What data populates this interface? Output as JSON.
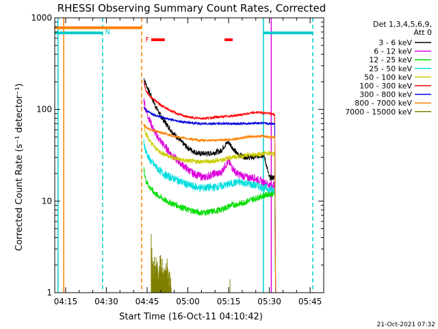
{
  "chart_data": {
    "type": "line",
    "title": "RHESSI Observing Summary Count Rates, Corrected",
    "xlabel": "Start Time (16-Oct-11 04:10:42)",
    "ylabel": "Corrected Count Rate (s⁻¹ detector⁻¹)",
    "y_scale": "log",
    "ylim": [
      1,
      1000
    ],
    "xlim_min": [
      251,
      350
    ],
    "x_tick_labels": [
      "04:15",
      "04:30",
      "04:45",
      "05:00",
      "05:15",
      "05:30",
      "05:45"
    ],
    "x_tick_min": [
      255,
      270,
      285,
      300,
      315,
      330,
      345
    ],
    "y_tick_labels": [
      "1",
      "10",
      "100",
      "1000"
    ],
    "y_tick_values": [
      1,
      10,
      100,
      1000
    ],
    "legend_header": [
      "Det 1,3,4,5,6,9,",
      "Att 0"
    ],
    "legend_position": "right",
    "series": [
      {
        "name": "3 - 6 keV",
        "color": "#000000",
        "x": [
          283.8,
          284.5,
          286,
          288,
          290,
          292,
          294,
          296,
          298,
          300,
          302,
          304,
          306,
          308,
          310,
          312,
          314,
          315,
          316,
          318,
          320,
          322,
          324,
          326,
          328,
          330,
          332
        ],
        "y": [
          220,
          190,
          150,
          110,
          85,
          70,
          58,
          50,
          43,
          38,
          35,
          33,
          33,
          33,
          34,
          35,
          42,
          44,
          40,
          33,
          31,
          30,
          30,
          31,
          32,
          18,
          18
        ]
      },
      {
        "name": "6 - 12 keV",
        "color": "#dd00dd",
        "x": [
          283.8,
          284.5,
          286,
          288,
          290,
          292,
          294,
          296,
          298,
          300,
          302,
          304,
          306,
          308,
          310,
          312,
          314,
          315,
          316,
          318,
          320,
          322,
          324,
          326,
          328,
          330,
          332
        ],
        "y": [
          130,
          100,
          75,
          55,
          45,
          38,
          32,
          28,
          25,
          22,
          20,
          19,
          18,
          19,
          20,
          20,
          25,
          27,
          24,
          20,
          19,
          18,
          18,
          17,
          16,
          15,
          15
        ]
      },
      {
        "name": "12 - 25 keV",
        "color": "#00dd00",
        "x": [
          283.8,
          284.5,
          286,
          288,
          290,
          292,
          294,
          296,
          298,
          300,
          302,
          304,
          306,
          308,
          310,
          312,
          314,
          316,
          318,
          320,
          322,
          324,
          326,
          328,
          330,
          332
        ],
        "y": [
          22,
          17,
          14,
          12,
          11,
          10,
          9.5,
          9,
          8.5,
          8,
          7.8,
          7.5,
          7.5,
          7.6,
          7.8,
          8,
          8.5,
          9,
          9.2,
          9.5,
          10,
          10.5,
          11,
          11.5,
          12,
          12
        ]
      },
      {
        "name": "25 - 50 keV",
        "color": "#00dddd",
        "x": [
          283.8,
          284.5,
          286,
          288,
          290,
          292,
          294,
          296,
          298,
          300,
          302,
          304,
          306,
          308,
          310,
          312,
          314,
          316,
          318,
          320,
          322,
          324,
          326,
          328,
          330,
          332
        ],
        "y": [
          45,
          35,
          28,
          24,
          21,
          19,
          18,
          17,
          16,
          15,
          14.5,
          14,
          14,
          14,
          14.2,
          14.5,
          15,
          15.5,
          16,
          16,
          15.5,
          15,
          14.5,
          14,
          13.5,
          13
        ]
      },
      {
        "name": "50 - 100 keV",
        "color": "#cccc00",
        "x": [
          283.8,
          284.5,
          286,
          288,
          290,
          292,
          294,
          296,
          298,
          300,
          302,
          304,
          306,
          308,
          310,
          312,
          314,
          316,
          318,
          320,
          322,
          324,
          326,
          328,
          330,
          332
        ],
        "y": [
          70,
          55,
          45,
          38,
          34,
          32,
          30,
          29,
          28,
          27.5,
          27,
          27,
          27,
          27,
          27.5,
          28,
          29,
          30,
          30.5,
          31,
          31.5,
          32,
          32.5,
          33,
          33,
          33
        ]
      },
      {
        "name": "100 - 300 keV",
        "color": "#ff0000",
        "x": [
          283.8,
          284.5,
          286,
          288,
          290,
          292,
          294,
          296,
          298,
          300,
          302,
          304,
          306,
          308,
          310,
          312,
          314,
          316,
          318,
          320,
          322,
          324,
          326,
          328,
          330,
          332
        ],
        "y": [
          200,
          160,
          140,
          125,
          112,
          103,
          96,
          90,
          86,
          83,
          81,
          80,
          80,
          81,
          82,
          83,
          84,
          85,
          86,
          88,
          90,
          92,
          93,
          92,
          90,
          88
        ]
      },
      {
        "name": "300 - 800 keV",
        "color": "#0000dd",
        "x": [
          283.8,
          284.5,
          286,
          288,
          290,
          292,
          294,
          296,
          298,
          300,
          302,
          304,
          306,
          308,
          310,
          312,
          314,
          316,
          318,
          320,
          322,
          324,
          326,
          328,
          330,
          332
        ],
        "y": [
          105,
          98,
          92,
          87,
          83,
          80,
          77,
          75,
          73,
          72,
          71,
          70,
          70,
          70,
          70,
          70,
          70,
          70,
          70,
          70,
          70,
          71,
          71,
          71,
          70,
          70
        ]
      },
      {
        "name": "800 - 7000 keV",
        "color": "#ff8000",
        "x": [
          283.8,
          284.5,
          286,
          288,
          290,
          292,
          294,
          296,
          298,
          300,
          302,
          304,
          306,
          308,
          310,
          312,
          314,
          316,
          318,
          320,
          322,
          324,
          326,
          328,
          330,
          332
        ],
        "y": [
          68,
          64,
          61,
          58,
          56,
          54,
          52,
          50,
          49,
          48,
          47,
          46,
          46,
          46,
          46,
          46,
          47,
          47,
          48,
          49,
          50,
          51,
          51,
          51,
          50,
          50
        ]
      },
      {
        "name": "7000 - 15000 keV",
        "color": "#808000",
        "x": [
          286.5,
          287,
          288,
          289,
          290,
          291,
          292,
          293,
          294
        ],
        "y": [
          3.5,
          1.5,
          2,
          1.5,
          2,
          1.5,
          2,
          1.3,
          1.1
        ]
      }
    ],
    "annotations": [
      {
        "label": "N",
        "color": "#00cccc"
      },
      {
        "label": "F",
        "color": "#ff0000"
      }
    ],
    "timestamp": "21-Oct-2021 07:32"
  }
}
